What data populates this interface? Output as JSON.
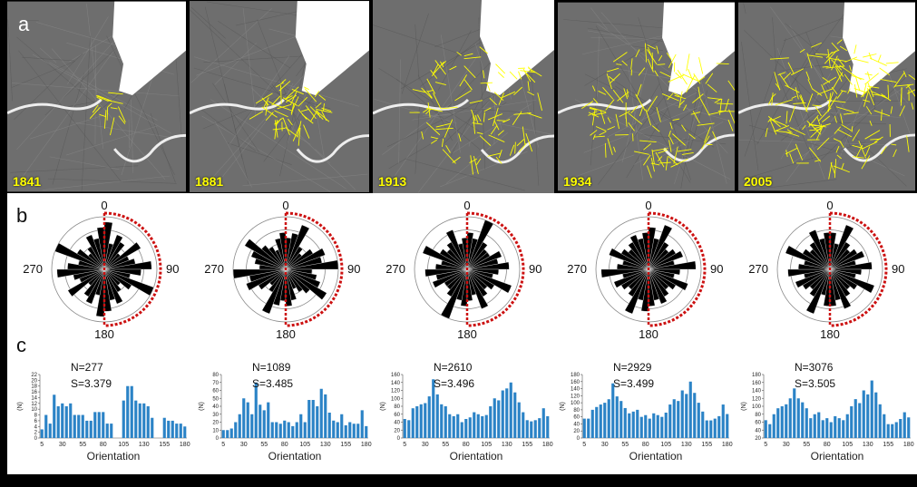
{
  "panel_labels": {
    "a": "a",
    "b": "b",
    "c": "c"
  },
  "maps": [
    {
      "year": "1841"
    },
    {
      "year": "1881"
    },
    {
      "year": "1913"
    },
    {
      "year": "1934"
    },
    {
      "year": "2005"
    }
  ],
  "colors": {
    "network": "#ffff00",
    "rose_bar": "#000000",
    "rose_ring": "#cc1111",
    "hist_bar": "#2b83c6"
  },
  "chart_data": [
    {
      "type": "bar",
      "title": "1841",
      "rose": {
        "compass_labels": [
          "0",
          "90",
          "180",
          "270"
        ],
        "petals": [
          0.9,
          0.5,
          0.7,
          0.6,
          0.4,
          0.8,
          0.5,
          0.6,
          0.9,
          0.7,
          0.5,
          1.0,
          0.6,
          0.4,
          0.5,
          0.7,
          0.6,
          0.8
        ]
      },
      "histogram": {
        "n_label": "N=277",
        "s_label": "S=3.379",
        "xlabel": "Orientation",
        "ylabel": "(N)",
        "y_ticks": [
          0,
          2,
          4,
          6,
          8,
          10,
          12,
          14,
          16,
          18,
          20,
          22
        ],
        "x_ticks": [
          5,
          30,
          55,
          80,
          105,
          130,
          155,
          180
        ],
        "values": [
          3,
          8,
          5,
          15,
          11,
          12,
          11,
          12,
          8,
          8,
          8,
          6,
          6,
          9,
          9,
          9,
          5,
          5,
          0,
          0,
          13,
          18,
          18,
          13,
          12,
          12,
          11,
          7,
          0,
          0,
          7,
          6,
          6,
          5,
          5,
          4
        ]
      }
    },
    {
      "type": "bar",
      "title": "1881",
      "rose": {
        "compass_labels": [
          "0",
          "90",
          "180",
          "270"
        ],
        "petals": [
          0.6,
          0.7,
          0.9,
          0.5,
          0.4,
          0.6,
          0.8,
          0.7,
          1.0,
          0.5,
          0.6,
          0.7,
          0.9,
          0.6,
          0.5,
          0.4,
          0.6,
          0.7
        ]
      },
      "histogram": {
        "n_label": "N=1089",
        "s_label": "S=3.485",
        "xlabel": "Orientation",
        "ylabel": "(N)",
        "y_ticks": [
          0,
          10,
          20,
          30,
          40,
          50,
          60,
          70,
          80
        ],
        "x_ticks": [
          5,
          30,
          55,
          80,
          105,
          130,
          155,
          180
        ],
        "values": [
          10,
          10,
          12,
          20,
          30,
          50,
          45,
          30,
          70,
          42,
          35,
          45,
          20,
          20,
          18,
          22,
          20,
          15,
          20,
          30,
          20,
          48,
          48,
          40,
          62,
          55,
          32,
          22,
          20,
          30,
          16,
          20,
          18,
          18,
          35,
          15
        ]
      }
    },
    {
      "type": "bar",
      "title": "1913",
      "rose": {
        "compass_labels": [
          "0",
          "90",
          "180",
          "270"
        ],
        "petals": [
          0.7,
          0.6,
          1.0,
          0.6,
          0.5,
          0.5,
          0.7,
          0.6,
          0.8,
          0.6,
          0.5,
          0.9,
          0.6,
          0.5,
          0.6,
          0.8,
          0.5,
          0.6
        ]
      },
      "histogram": {
        "n_label": "N=2610",
        "s_label": "S=3.496",
        "xlabel": "Orientation",
        "ylabel": "(N)",
        "y_ticks": [
          0,
          20,
          40,
          60,
          80,
          100,
          120,
          140,
          160
        ],
        "x_ticks": [
          5,
          30,
          55,
          80,
          105,
          130,
          155,
          180
        ],
        "values": [
          48,
          45,
          75,
          80,
          85,
          88,
          105,
          148,
          110,
          85,
          80,
          60,
          55,
          60,
          40,
          48,
          52,
          65,
          60,
          55,
          58,
          80,
          100,
          95,
          120,
          125,
          140,
          115,
          90,
          65,
          45,
          42,
          45,
          50,
          75,
          55
        ]
      }
    },
    {
      "type": "bar",
      "title": "1934",
      "rose": {
        "compass_labels": [
          "0",
          "90",
          "180",
          "270"
        ],
        "petals": [
          0.8,
          0.6,
          0.9,
          0.6,
          0.5,
          0.6,
          0.7,
          0.5,
          0.9,
          0.6,
          0.5,
          0.8,
          0.6,
          0.5,
          0.6,
          0.7,
          0.6,
          0.7
        ]
      },
      "histogram": {
        "n_label": "N=2929",
        "s_label": "S=3.499",
        "xlabel": "Orientation",
        "ylabel": "(N)",
        "y_ticks": [
          0,
          20,
          40,
          60,
          80,
          100,
          120,
          140,
          160,
          180
        ],
        "x_ticks": [
          5,
          30,
          55,
          80,
          105,
          130,
          155,
          180
        ],
        "values": [
          55,
          55,
          80,
          88,
          95,
          100,
          110,
          155,
          118,
          105,
          85,
          70,
          75,
          80,
          60,
          65,
          55,
          70,
          65,
          60,
          72,
          95,
          110,
          105,
          135,
          125,
          160,
          128,
          100,
          75,
          50,
          50,
          55,
          62,
          95,
          68
        ]
      }
    },
    {
      "type": "bar",
      "title": "2005",
      "rose": {
        "compass_labels": [
          "0",
          "90",
          "180",
          "270"
        ],
        "petals": [
          0.7,
          0.5,
          0.9,
          0.6,
          0.5,
          0.6,
          0.7,
          0.5,
          0.8,
          0.6,
          0.5,
          0.9,
          0.6,
          0.5,
          0.6,
          0.8,
          0.6,
          0.7
        ]
      },
      "histogram": {
        "n_label": "N=3076",
        "s_label": "S=3.505",
        "xlabel": "Orientation",
        "ylabel": "(N)",
        "y_ticks": [
          20,
          40,
          60,
          80,
          100,
          120,
          140,
          160,
          180
        ],
        "x_ticks": [
          5,
          30,
          55,
          80,
          105,
          130,
          155,
          180
        ],
        "values": [
          65,
          55,
          80,
          95,
          100,
          105,
          120,
          145,
          120,
          110,
          95,
          70,
          80,
          85,
          65,
          70,
          60,
          75,
          70,
          65,
          80,
          100,
          118,
          108,
          140,
          130,
          165,
          135,
          105,
          80,
          55,
          55,
          60,
          68,
          85,
          72
        ]
      }
    }
  ]
}
